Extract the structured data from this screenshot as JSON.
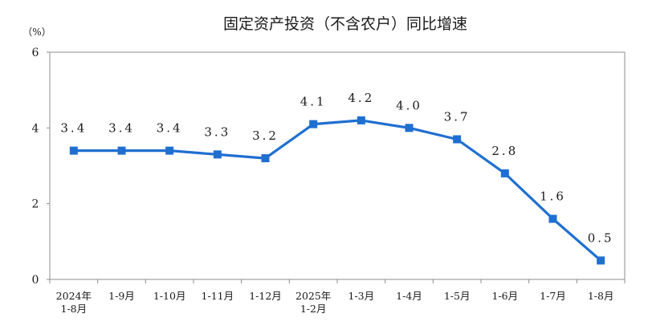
{
  "chart_data": {
    "type": "line",
    "title": "固定资产投资（不含农户）同比增速",
    "unit_label": "（%）",
    "categories": [
      [
        "2024年",
        "1-8月"
      ],
      [
        "1-9月"
      ],
      [
        "1-10月"
      ],
      [
        "1-11月"
      ],
      [
        "1-12月"
      ],
      [
        "2025年",
        "1-2月"
      ],
      [
        "1-3月"
      ],
      [
        "1-4月"
      ],
      [
        "1-5月"
      ],
      [
        "1-6月"
      ],
      [
        "1-7月"
      ],
      [
        "1-8月"
      ]
    ],
    "values": [
      3.4,
      3.4,
      3.4,
      3.3,
      3.2,
      4.1,
      4.2,
      4.0,
      3.7,
      2.8,
      1.6,
      0.5
    ],
    "value_labels": [
      "3.4",
      "3.4",
      "3.4",
      "3.3",
      "3.2",
      "4.1",
      "4.2",
      "4.0",
      "3.7",
      "2.8",
      "1.6",
      "0.5"
    ],
    "ylim": [
      0,
      6
    ],
    "yticks": [
      0,
      2,
      4,
      6
    ],
    "ytick_labels": [
      "0",
      "2",
      "4",
      "6"
    ],
    "grid": false,
    "legend": "none",
    "colors": {
      "line": "#1f6fd1",
      "marker": "#1f6fd1",
      "axis": "#8c8c8c",
      "text": "#1a1a1a"
    }
  }
}
